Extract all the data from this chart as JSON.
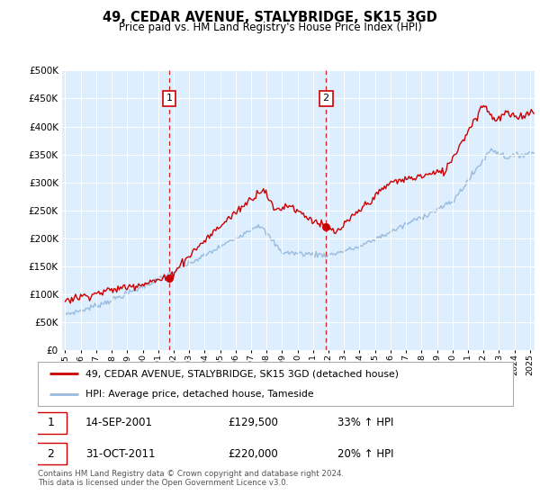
{
  "title": "49, CEDAR AVENUE, STALYBRIDGE, SK15 3GD",
  "subtitle": "Price paid vs. HM Land Registry's House Price Index (HPI)",
  "legend_line1": "49, CEDAR AVENUE, STALYBRIDGE, SK15 3GD (detached house)",
  "legend_line2": "HPI: Average price, detached house, Tameside",
  "annotation1_date": "14-SEP-2001",
  "annotation1_price": "£129,500",
  "annotation1_hpi": "33% ↑ HPI",
  "annotation1_year": 2001.71,
  "annotation1_value": 129500,
  "annotation2_date": "31-OCT-2011",
  "annotation2_price": "£220,000",
  "annotation2_hpi": "20% ↑ HPI",
  "annotation2_year": 2011.83,
  "annotation2_value": 220000,
  "footer": "Contains HM Land Registry data © Crown copyright and database right 2024.\nThis data is licensed under the Open Government Licence v3.0.",
  "red_color": "#cc0000",
  "blue_color": "#99bbdd",
  "background_color": "#ddeeff",
  "ylim": [
    0,
    500000
  ],
  "yticks": [
    0,
    50000,
    100000,
    150000,
    200000,
    250000,
    300000,
    350000,
    400000,
    450000,
    500000
  ],
  "xlim_start": 1994.8,
  "xlim_end": 2025.3
}
